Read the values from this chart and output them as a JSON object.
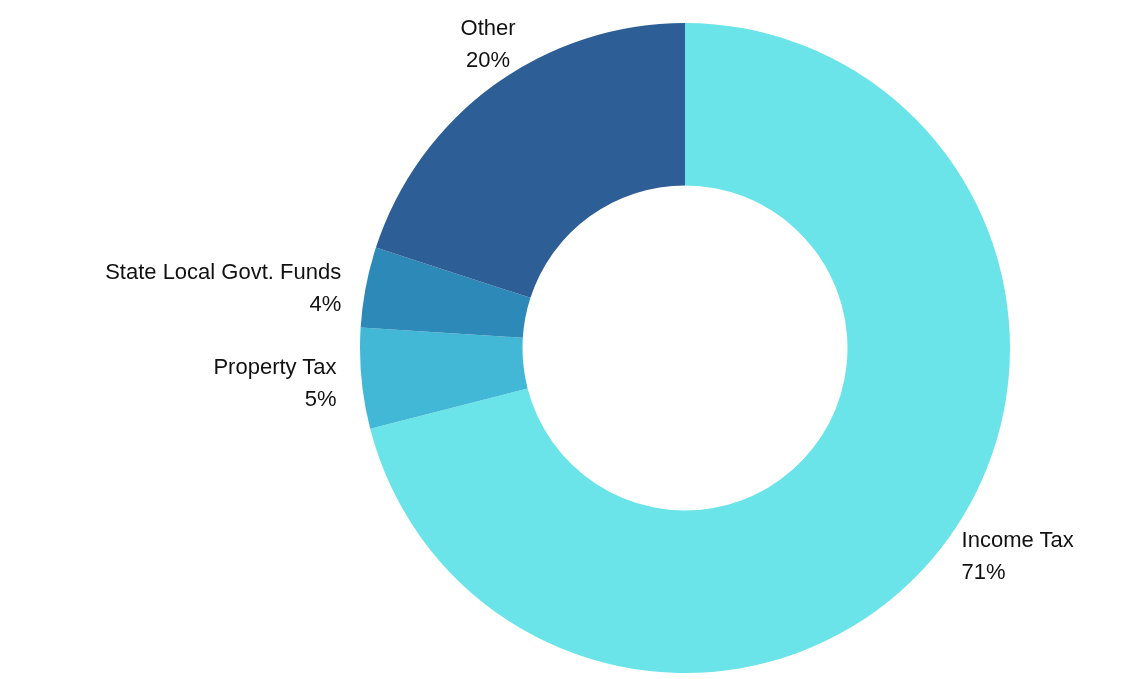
{
  "chart_data": {
    "type": "donut",
    "categories": [
      "Income Tax",
      "Property Tax",
      "State Local Govt. Funds",
      "Other"
    ],
    "values": [
      71,
      5,
      4,
      20
    ],
    "colors": [
      "#6ae4e8",
      "#42b8d6",
      "#2d8ab8",
      "#2e5e96"
    ],
    "value_labels": [
      "71%",
      "5%",
      "4%",
      "20%"
    ]
  }
}
